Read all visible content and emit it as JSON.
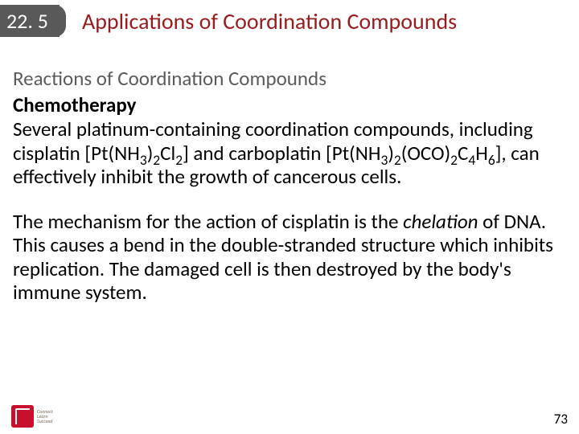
{
  "header": {
    "section_number": "22. 5",
    "title": "Applications of Coordination Compounds"
  },
  "content": {
    "subheading": "Reactions of Coordination Compounds",
    "topic": "Chemotherapy",
    "p1_a": "Several platinum-containing coordination compounds, including cisplatin [Pt(NH",
    "p1_b": ")",
    "p1_c": "Cl",
    "p1_d": "] and carboplatin [Pt(NH",
    "p1_e": ")",
    "p1_f": "(OCO)",
    "p1_g": "C",
    "p1_h": "H",
    "p1_i": "], can effectively inhibit the growth of cancerous cells.",
    "sub3a": "3",
    "sub2a": "2",
    "sub2b": "2",
    "sub3b": "3",
    "sub2c": "2",
    "sub2d": "2",
    "sub4a": "4",
    "sub6a": "6",
    "p2_a": "The mechanism for the action of cisplatin is the ",
    "p2_chel": "chelation",
    "p2_b": " of DNA. This causes a bend in the double-stranded structure which inhibits replication. The damaged cell is then destroyed by the body's immune system."
  },
  "footer": {
    "logo_line1": "Connect",
    "logo_line2": "Learn",
    "logo_line3": "Succeed",
    "page_number": "73"
  },
  "colors": {
    "tab_bg": "#595959",
    "title_color": "#9a1b1e",
    "subhead_color": "#5b5b5b",
    "logo_red": "#c8102e"
  }
}
